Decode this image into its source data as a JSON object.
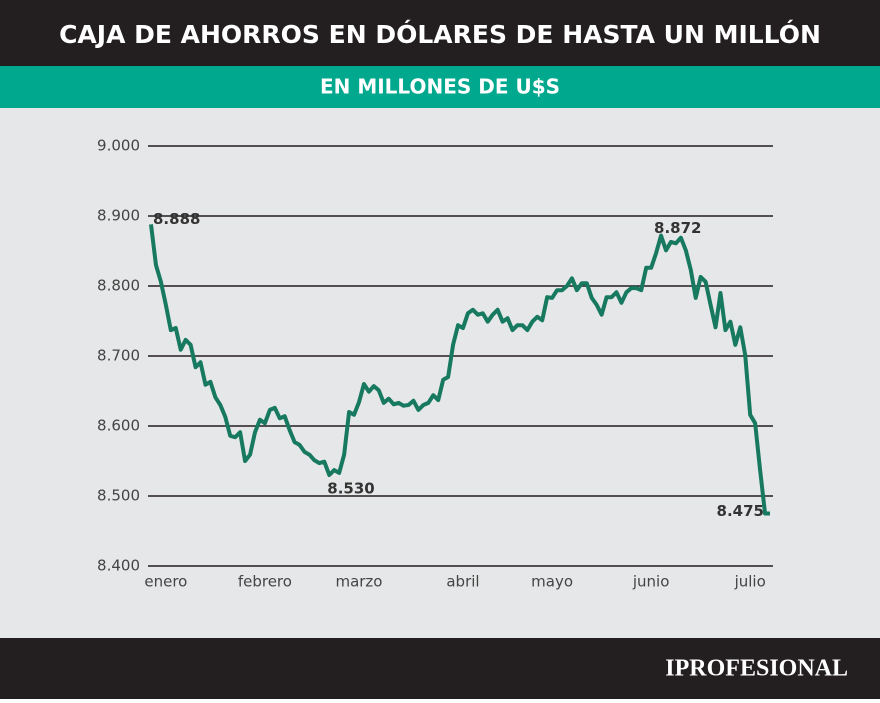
{
  "chart_data": {
    "type": "line",
    "title": "CAJA DE AHORROS EN DÓLARES DE HASTA UN MILLÓN",
    "subtitle": "EN MILLONES DE U$S",
    "color": "#17795f",
    "grid": true,
    "values": [
      8888,
      8830,
      8806,
      8773,
      8737,
      8740,
      8709,
      8723,
      8716,
      8684,
      8691,
      8659,
      8663,
      8641,
      8630,
      8613,
      8586,
      8584,
      8591,
      8550,
      8559,
      8591,
      8609,
      8604,
      8623,
      8626,
      8611,
      8614,
      8594,
      8577,
      8573,
      8563,
      8559,
      8551,
      8547,
      8549,
      8530,
      8537,
      8533,
      8559,
      8620,
      8616,
      8634,
      8660,
      8649,
      8657,
      8651,
      8633,
      8639,
      8631,
      8633,
      8629,
      8630,
      8636,
      8623,
      8630,
      8633,
      8644,
      8637,
      8666,
      8670,
      8716,
      8744,
      8740,
      8761,
      8766,
      8759,
      8761,
      8749,
      8759,
      8766,
      8749,
      8754,
      8737,
      8744,
      8744,
      8737,
      8749,
      8756,
      8751,
      8784,
      8783,
      8794,
      8794,
      8800,
      8811,
      8794,
      8804,
      8804,
      8783,
      8773,
      8759,
      8784,
      8784,
      8791,
      8776,
      8791,
      8797,
      8797,
      8794,
      8826,
      8826,
      8847,
      8872,
      8851,
      8863,
      8861,
      8869,
      8851,
      8823,
      8783,
      8813,
      8806,
      8773,
      8741,
      8790,
      8737,
      8749,
      8716,
      8741,
      8701,
      8616,
      8604,
      8537,
      8475,
      8475
    ],
    "value_labels": [
      "8.888",
      null,
      null,
      null,
      null,
      null,
      null,
      null,
      null,
      null,
      null,
      null,
      null,
      null,
      null,
      null,
      null,
      null,
      null,
      null,
      null,
      null,
      null,
      null,
      null,
      null,
      null,
      null,
      null,
      null,
      null,
      null,
      null,
      null,
      null,
      null,
      "8.530",
      null,
      null,
      null,
      null,
      null,
      null,
      null,
      null,
      null,
      null,
      null,
      null,
      null,
      null,
      null,
      null,
      null,
      null,
      null,
      null,
      null,
      null,
      null,
      null,
      null,
      null,
      null,
      null,
      null,
      null,
      null,
      null,
      null,
      null,
      null,
      null,
      null,
      null,
      null,
      null,
      null,
      null,
      null,
      null,
      null,
      null,
      null,
      null,
      null,
      null,
      null,
      null,
      null,
      null,
      null,
      null,
      null,
      null,
      null,
      null,
      null,
      null,
      null,
      null,
      null,
      null,
      "8.872",
      null,
      null,
      null,
      null,
      null,
      null,
      null,
      null,
      null,
      null,
      null,
      null,
      null,
      null,
      null,
      null,
      null,
      null,
      null,
      null,
      null,
      "8.475"
    ],
    "xlim": [
      0,
      125
    ],
    "xticks": [
      {
        "value": 3,
        "label": "enero"
      },
      {
        "value": 23,
        "label": "febrero"
      },
      {
        "value": 42,
        "label": "marzo"
      },
      {
        "value": 63,
        "label": "abril"
      },
      {
        "value": 81,
        "label": "mayo"
      },
      {
        "value": 101,
        "label": "junio"
      },
      {
        "value": 121,
        "label": "julio"
      }
    ],
    "ylim": [
      8400,
      9000
    ],
    "yticks": [
      {
        "value": 8400,
        "label": "8.400"
      },
      {
        "value": 8500,
        "label": "8.500"
      },
      {
        "value": 8600,
        "label": "8.600"
      },
      {
        "value": 8700,
        "label": "8.700"
      },
      {
        "value": 8800,
        "label": "8.800"
      },
      {
        "value": 8900,
        "label": "8.900"
      },
      {
        "value": 9000,
        "label": "9.000"
      }
    ]
  },
  "brand": "IPROFESIONAL"
}
